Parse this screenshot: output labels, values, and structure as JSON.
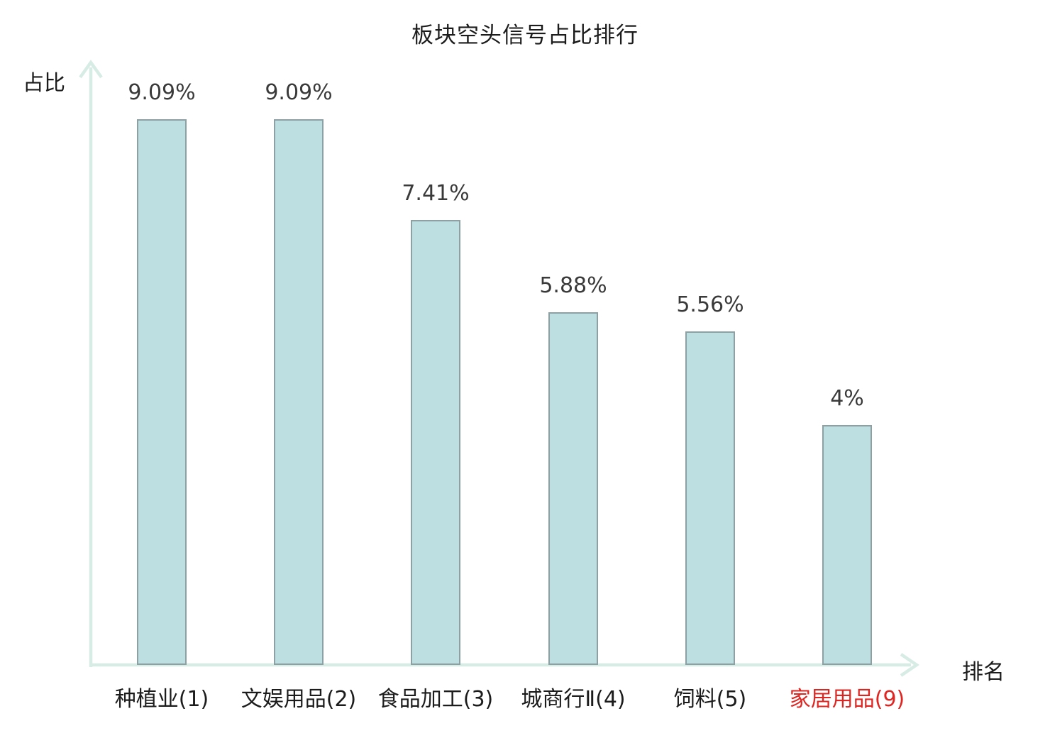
{
  "title": "板块空头信号占比排行",
  "chart_data": {
    "type": "bar",
    "title": "板块空头信号占比排行",
    "xlabel": "排名",
    "ylabel": "占比",
    "categories": [
      "种植业(1)",
      "文娱用品(2)",
      "食品加工(3)",
      "城商行Ⅱ(4)",
      "饲料(5)",
      "家居用品(9)"
    ],
    "values": [
      9.09,
      9.09,
      7.41,
      5.88,
      5.56,
      4
    ],
    "value_labels": [
      "9.09%",
      "9.09%",
      "7.41%",
      "5.88%",
      "5.56%",
      "4%"
    ],
    "highlighted_category_index": 5,
    "ylim": [
      0,
      10
    ],
    "grid": "off",
    "legend": "none",
    "colors": {
      "bar_fill": "#bddfe2",
      "bar_border": "#8da0a4",
      "axis": "#d7ece5",
      "text": "#1c1c1c",
      "value_text": "#3a3a3a",
      "highlight_text": "#e02420"
    }
  }
}
